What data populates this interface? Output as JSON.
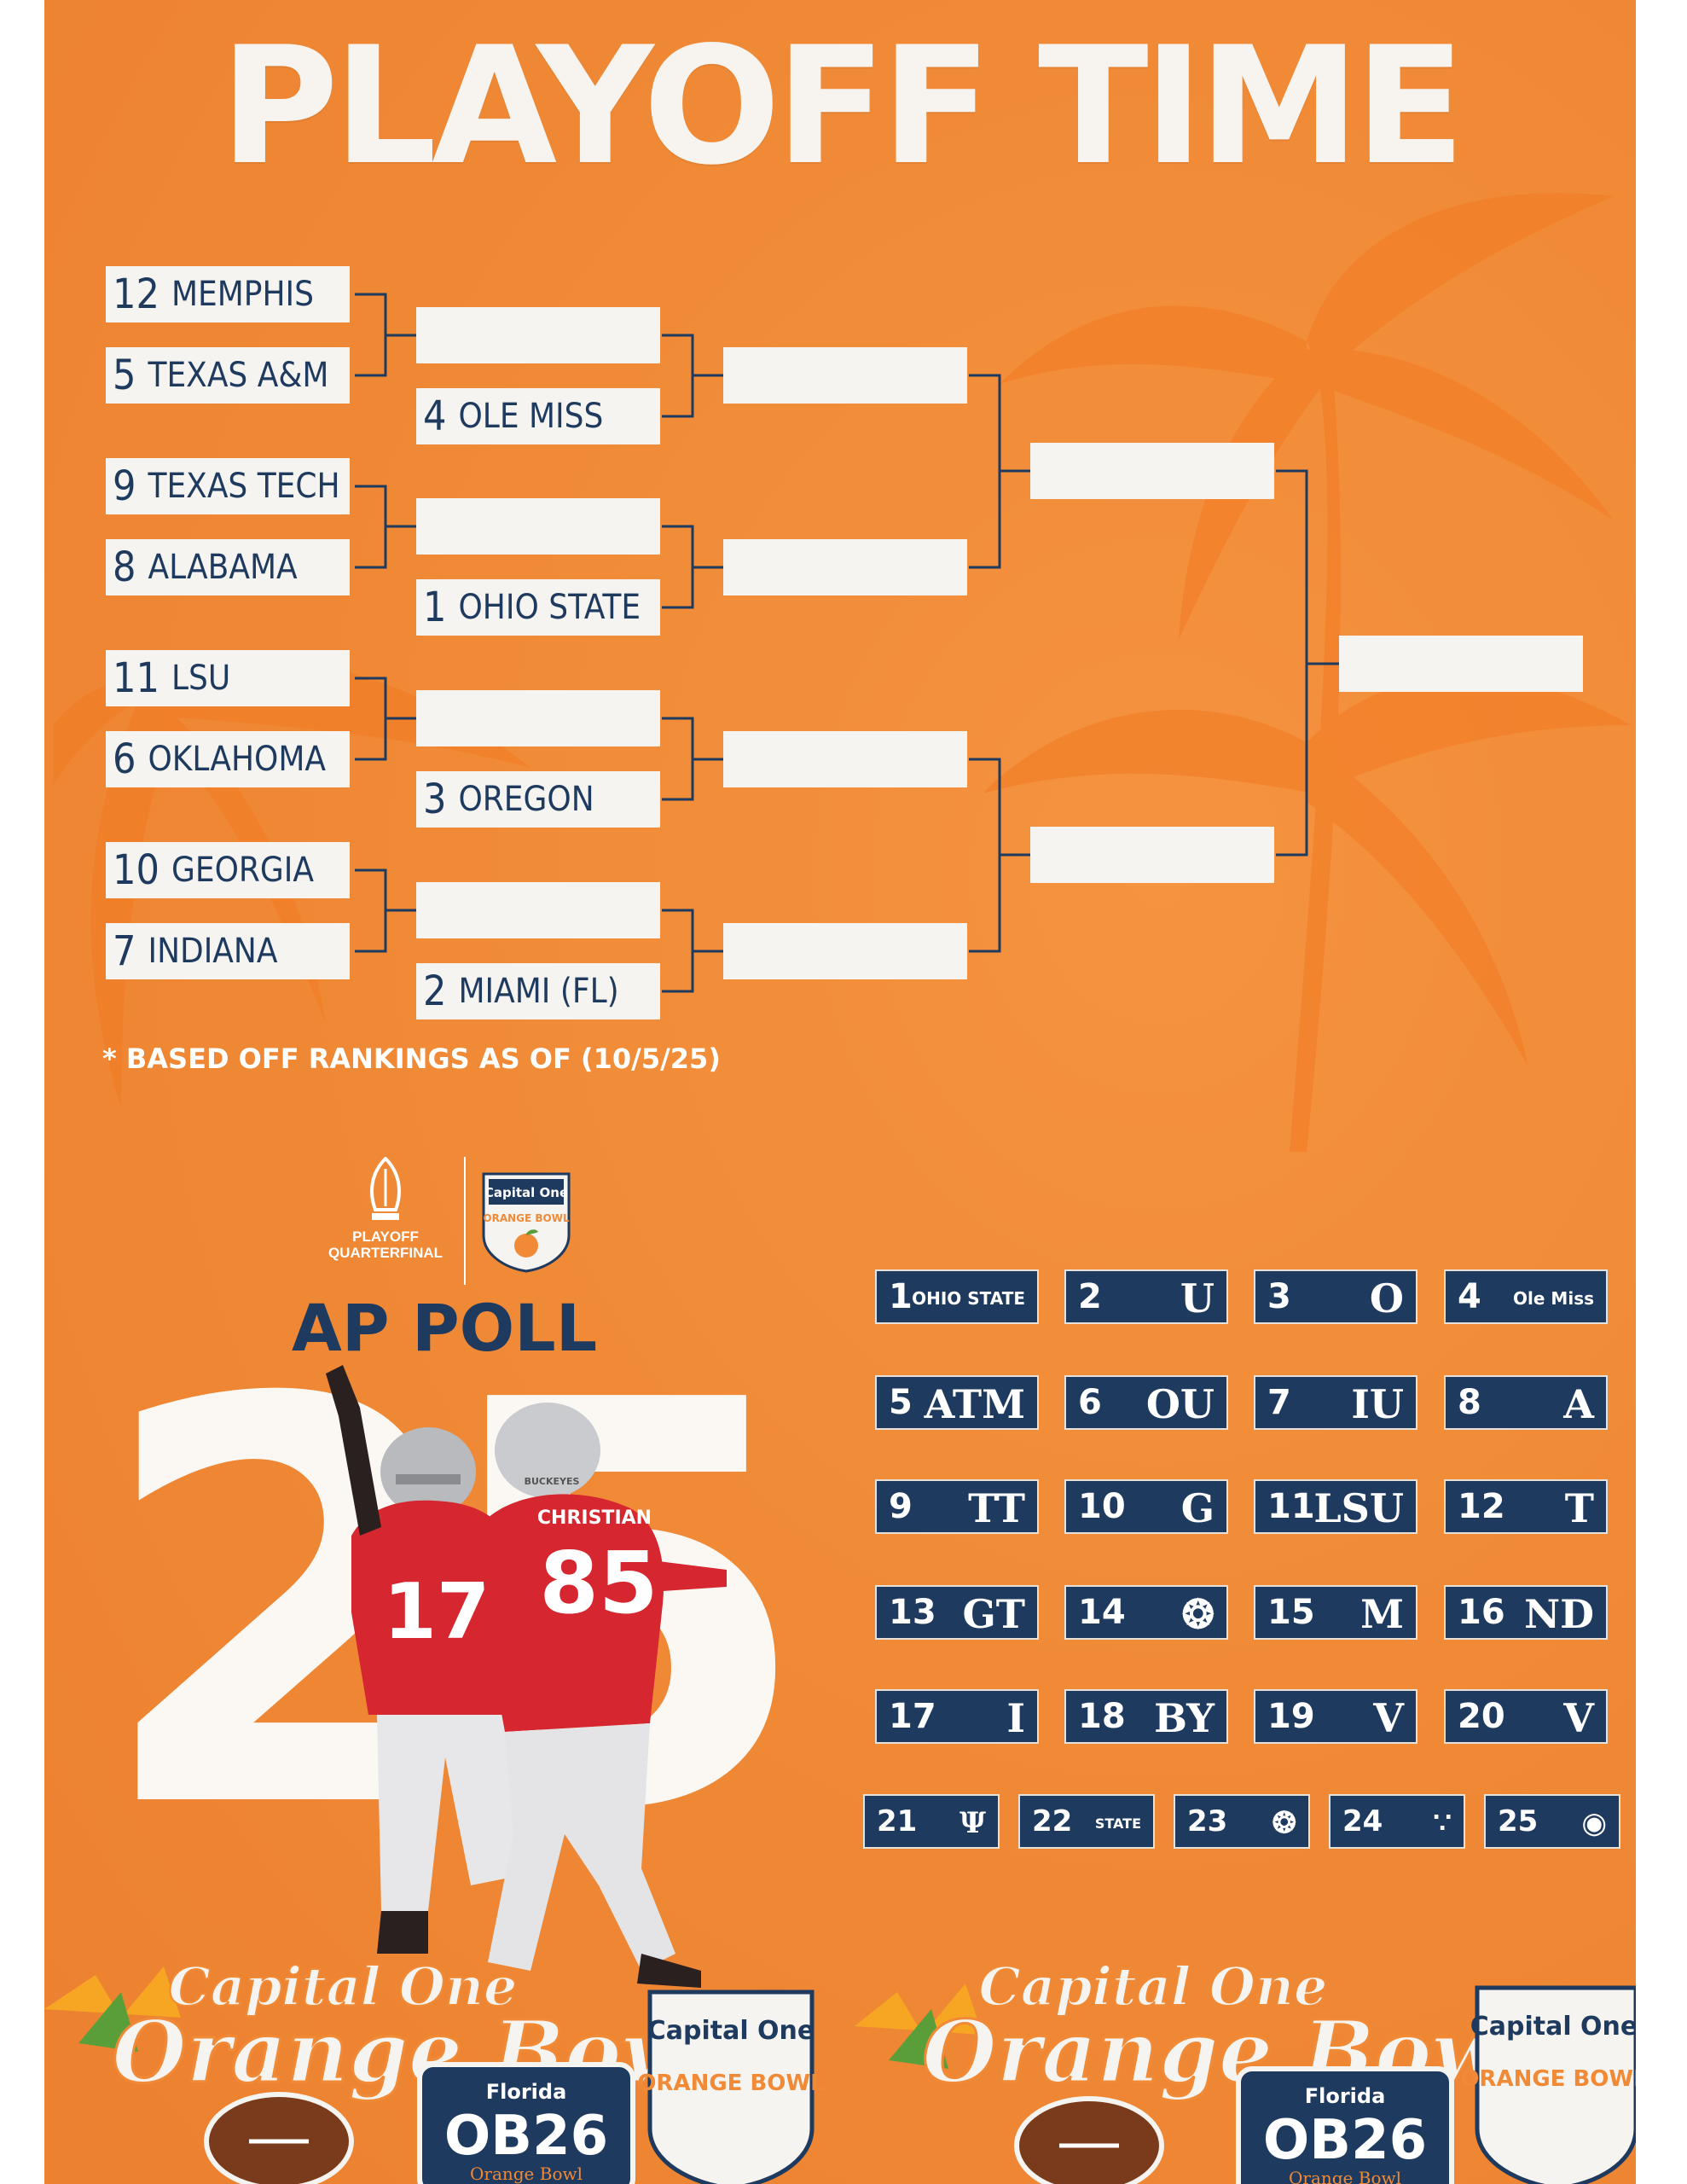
{
  "title": "PLAYOFF TIME",
  "bracket": {
    "first_round": [
      {
        "seed": "12",
        "team": "MEMPHIS"
      },
      {
        "seed": "5",
        "team": "TEXAS A&M"
      },
      {
        "seed": "9",
        "team": "TEXAS TECH"
      },
      {
        "seed": "8",
        "team": "ALABAMA"
      },
      {
        "seed": "11",
        "team": "LSU"
      },
      {
        "seed": "6",
        "team": "OKLAHOMA"
      },
      {
        "seed": "10",
        "team": "GEORGIA"
      },
      {
        "seed": "7",
        "team": "INDIANA"
      }
    ],
    "byes": [
      {
        "seed": "4",
        "team": "OLE MISS"
      },
      {
        "seed": "1",
        "team": "OHIO STATE"
      },
      {
        "seed": "3",
        "team": "OREGON"
      },
      {
        "seed": "2",
        "team": "MIAMI (FL)"
      }
    ]
  },
  "footnote": "* BASED OFF RANKINGS AS OF (10/5/25)",
  "logos": {
    "cfp_line1": "PLAYOFF",
    "cfp_line2": "QUARTERFINAL",
    "ob_top": "Capital One",
    "ob_main": "ORANGE BOWL"
  },
  "ap_poll": {
    "title": "AP POLL",
    "big_number": "25",
    "entries": [
      {
        "rank": "1",
        "logo": "OHIO STATE"
      },
      {
        "rank": "2",
        "logo": "U"
      },
      {
        "rank": "3",
        "logo": "O"
      },
      {
        "rank": "4",
        "logo": "Ole Miss"
      },
      {
        "rank": "5",
        "logo": "ATM"
      },
      {
        "rank": "6",
        "logo": "OU"
      },
      {
        "rank": "7",
        "logo": "IU"
      },
      {
        "rank": "8",
        "logo": "A"
      },
      {
        "rank": "9",
        "logo": "TT"
      },
      {
        "rank": "10",
        "logo": "G"
      },
      {
        "rank": "11",
        "logo": "LSU"
      },
      {
        "rank": "12",
        "logo": "T"
      },
      {
        "rank": "13",
        "logo": "GT"
      },
      {
        "rank": "14",
        "logo": "tiger-icon"
      },
      {
        "rank": "15",
        "logo": "M"
      },
      {
        "rank": "16",
        "logo": "ND"
      },
      {
        "rank": "17",
        "logo": "I"
      },
      {
        "rank": "18",
        "logo": "BY"
      },
      {
        "rank": "19",
        "logo": "V"
      },
      {
        "rank": "20",
        "logo": "V"
      },
      {
        "rank": "21",
        "logo": "pitchfork-icon"
      },
      {
        "rank": "22",
        "logo": "STATE"
      },
      {
        "rank": "23",
        "logo": "tiger-icon"
      },
      {
        "rank": "24",
        "logo": "bull-icon"
      },
      {
        "rank": "25",
        "logo": "seminole-icon"
      }
    ]
  },
  "players": {
    "jersey_left": "17",
    "jersey_right": "85",
    "nameplate": "CHRISTIAN",
    "helmet_text": "BUCKEYES"
  },
  "stickers": {
    "script_line1": "Capital One",
    "script_line2": "Orange Bowl",
    "badge_brand": "Capital One",
    "badge_name": "ORANGE BOWL",
    "florida_label": "Florida",
    "ob26": "OB26",
    "ob26_sub": "Orange Bowl"
  },
  "colors": {
    "background": "#f08a36",
    "navy": "#1e3a5f",
    "slot": "#f6f4f0",
    "title": "#f7f3ee"
  }
}
